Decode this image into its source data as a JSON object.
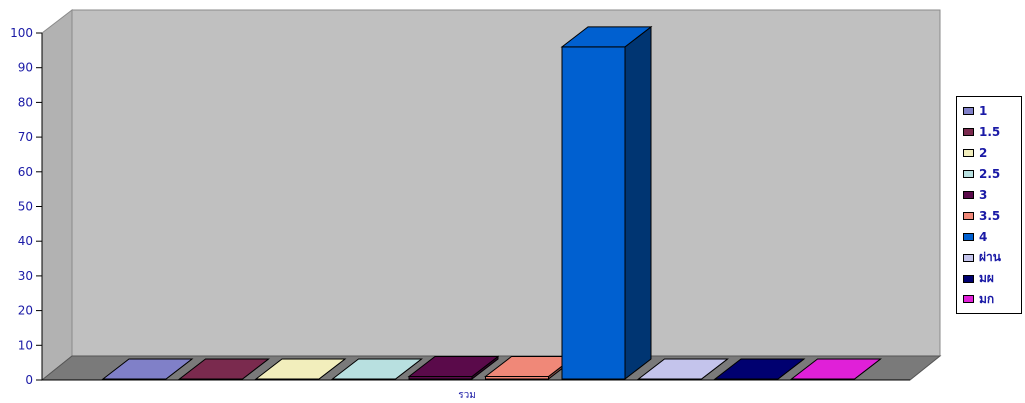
{
  "chart_data": {
    "type": "bar",
    "categories": [
      "รวม"
    ],
    "series": [
      {
        "name": "1",
        "values": [
          0
        ],
        "color": "#8080c8"
      },
      {
        "name": "1.5",
        "values": [
          0
        ],
        "color": "#7a2a4e"
      },
      {
        "name": "2",
        "values": [
          0
        ],
        "color": "#f2eebc"
      },
      {
        "name": "2.5",
        "values": [
          0
        ],
        "color": "#b8e0e0"
      },
      {
        "name": "3",
        "values": [
          1
        ],
        "color": "#5a0a4a"
      },
      {
        "name": "3.5",
        "values": [
          1
        ],
        "color": "#f08878"
      },
      {
        "name": "4",
        "values": [
          96
        ],
        "color": "#0060d0"
      },
      {
        "name": "ผ่าน",
        "values": [
          0
        ],
        "color": "#c4c4ec"
      },
      {
        "name": "มผ",
        "values": [
          0
        ],
        "color": "#000070"
      },
      {
        "name": "มก",
        "values": [
          0
        ],
        "color": "#e020d8"
      }
    ],
    "y_ticks": [
      "0",
      "10",
      "20",
      "30",
      "40",
      "50",
      "60",
      "70",
      "80",
      "90",
      "100"
    ],
    "ylim": [
      0,
      100
    ],
    "grid": false,
    "legend_position": "right",
    "wall_color": "#c0c0c0"
  }
}
